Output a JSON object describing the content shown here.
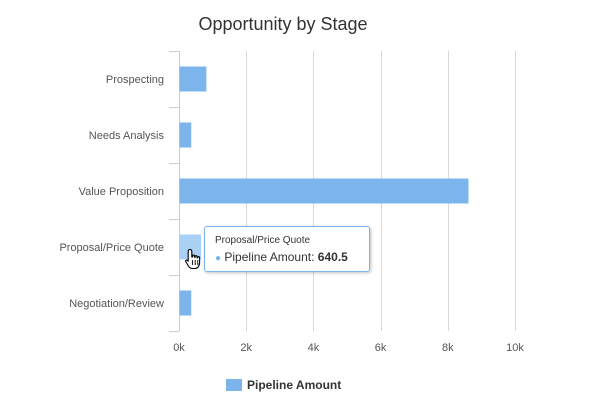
{
  "chart_data": {
    "type": "bar",
    "orientation": "horizontal",
    "title": "Opportunity by Stage",
    "categories": [
      "Prospecting",
      "Needs Analysis",
      "Value Proposition",
      "Proposal/Price Quote",
      "Negotiation/Review"
    ],
    "series": [
      {
        "name": "Pipeline Amount",
        "values": [
          800,
          350,
          8600,
          640.5,
          350
        ],
        "color": "#7cb5ec"
      }
    ],
    "xlim": [
      0,
      10000
    ],
    "ticks": [
      0,
      2000,
      4000,
      6000,
      8000,
      10000
    ],
    "tick_labels": [
      "0k",
      "2k",
      "4k",
      "6k",
      "8k",
      "10k"
    ],
    "grid": true,
    "legend_position": "bottom",
    "hovered_index": 3,
    "hover_color": "#a9d0f5"
  },
  "tooltip": {
    "header": "Proposal/Price Quote",
    "series_label": "Pipeline Amount:",
    "value": "640.5"
  }
}
